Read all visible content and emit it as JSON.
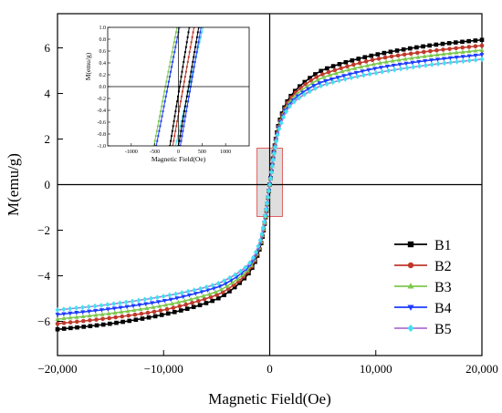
{
  "chart_data": [
    {
      "type": "line",
      "title": "",
      "xlabel": "Magnetic Field(Oe)",
      "ylabel": "M(emu/g)",
      "xlim": [
        -20000,
        20000
      ],
      "ylim": [
        -7.5,
        7.5
      ],
      "xticks": [
        -20000,
        -10000,
        0,
        10000,
        20000
      ],
      "xtick_labels": [
        "−20,000",
        "−10,000",
        "0",
        "10,000",
        "20,000"
      ],
      "yticks": [
        -6,
        -4,
        -2,
        0,
        2,
        4,
        6
      ],
      "ytick_labels": [
        "−6",
        "−4",
        "−2",
        "0",
        "2",
        "4",
        "6"
      ],
      "legend_position": "bottom-right",
      "grid": false,
      "highlight_box": {
        "x": [
          -1200,
          1200
        ],
        "y": [
          -1.4,
          1.6
        ]
      },
      "x": [
        -20000,
        -15000,
        -10000,
        -6000,
        -4000,
        -2000,
        -1000,
        -500,
        0,
        500,
        1000,
        2000,
        4000,
        6000,
        10000,
        15000,
        20000
      ],
      "series": [
        {
          "name": "B1",
          "color": "#000000",
          "marker": "square",
          "values": [
            -6.35,
            -6.1,
            -5.7,
            -5.2,
            -4.75,
            -3.9,
            -2.9,
            -1.8,
            0,
            1.8,
            2.9,
            3.9,
            4.75,
            5.2,
            5.7,
            6.1,
            6.35
          ]
        },
        {
          "name": "B2",
          "color": "#c0392b",
          "marker": "circle",
          "values": [
            -6.1,
            -5.85,
            -5.5,
            -5.0,
            -4.6,
            -3.8,
            -2.8,
            -1.75,
            0,
            1.75,
            2.8,
            3.8,
            4.6,
            5.0,
            5.5,
            5.85,
            6.1
          ]
        },
        {
          "name": "B3",
          "color": "#7ec850",
          "marker": "triangle-up",
          "values": [
            -5.9,
            -5.65,
            -5.3,
            -4.85,
            -4.45,
            -3.7,
            -2.75,
            -1.7,
            0,
            1.7,
            2.75,
            3.7,
            4.45,
            4.85,
            5.3,
            5.65,
            5.9
          ]
        },
        {
          "name": "B4",
          "color": "#1f3cff",
          "marker": "triangle-down",
          "values": [
            -5.7,
            -5.45,
            -5.1,
            -4.65,
            -4.3,
            -3.6,
            -2.7,
            -1.65,
            0,
            1.65,
            2.7,
            3.6,
            4.3,
            4.65,
            5.1,
            5.45,
            5.7
          ]
        },
        {
          "name": "B5",
          "color": "#45e0ef",
          "line_color": "#b070d0",
          "marker": "diamond",
          "values": [
            -5.5,
            -5.25,
            -4.9,
            -4.5,
            -4.15,
            -3.5,
            -2.6,
            -1.6,
            0,
            1.6,
            2.6,
            3.5,
            4.15,
            4.5,
            4.9,
            5.25,
            5.5
          ]
        }
      ]
    },
    {
      "type": "line",
      "title": "",
      "xlabel": "Magnetic Field(Oe)",
      "ylabel": "M(emu/g)",
      "xlim": [
        -1500,
        1500
      ],
      "ylim": [
        -1.0,
        1.0
      ],
      "xticks": [
        -1000,
        -500,
        0,
        500,
        1000
      ],
      "xtick_labels": [
        "-1000",
        "-500",
        "0",
        "500",
        "1000"
      ],
      "yticks": [
        -1.0,
        -0.8,
        -0.6,
        -0.4,
        -0.2,
        0.0,
        0.2,
        0.4,
        0.6,
        0.8,
        1.0
      ],
      "ytick_labels": [
        "-1.0",
        "-0.8",
        "-0.6",
        "-0.4",
        "-0.2",
        "0.0",
        "0.2",
        "0.4",
        "0.6",
        "0.8",
        "1.0"
      ],
      "branches": [
        {
          "name": "B1",
          "color": "#000000",
          "x_at_ymin": -180,
          "x_at_ymax": 230
        },
        {
          "name": "B2",
          "color": "#c0392b",
          "x_at_ymin": -120,
          "x_at_ymax": 330
        },
        {
          "name": "B3",
          "color": "#7ec850",
          "x_at_ymin": -520,
          "x_at_ymax": -30
        },
        {
          "name": "B4",
          "color": "#1f3cff",
          "x_at_ymin": -470,
          "x_at_ymax": 20
        },
        {
          "name": "B5",
          "color": "#45e0ef",
          "x_at_ymin": -60,
          "x_at_ymax": 520
        },
        {
          "name": "B1",
          "color": "#000000",
          "x_at_ymin": 0,
          "x_at_ymax": 430
        },
        {
          "name": "B4",
          "color": "#1f3cff",
          "x_at_ymin": 40,
          "x_at_ymax": 480
        }
      ]
    }
  ]
}
